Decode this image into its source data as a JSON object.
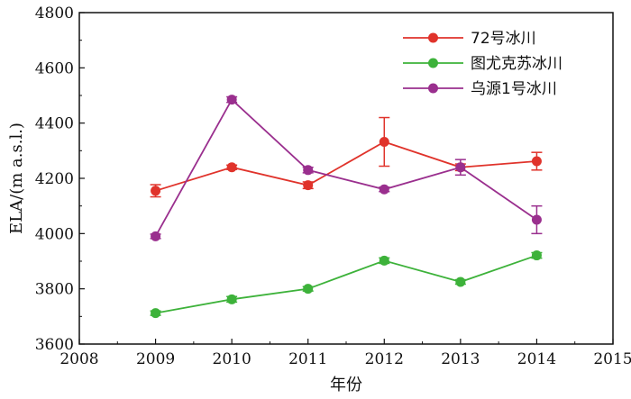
{
  "chart_data": {
    "type": "line",
    "title": "",
    "xlabel": "年份",
    "ylabel": "ELA/(m a.s.l.)",
    "xlim": [
      2008,
      2015
    ],
    "ylim": [
      3600,
      4800
    ],
    "xticks": [
      2008,
      2009,
      2010,
      2011,
      2012,
      2013,
      2014,
      2015
    ],
    "yticks": [
      3600,
      3800,
      4000,
      4200,
      4400,
      4600,
      4800
    ],
    "grid": false,
    "legend_position": "top-right",
    "x": [
      2009,
      2010,
      2011,
      2012,
      2013,
      2014
    ],
    "series": [
      {
        "name": "72号冰川",
        "color": "#e0332b",
        "values": [
          4155,
          4240,
          4175,
          4332,
          4240,
          4262
        ],
        "errors": [
          22,
          8,
          12,
          88,
          12,
          32
        ]
      },
      {
        "name": "图尤克苏冰川",
        "color": "#3db23a",
        "values": [
          3712,
          3762,
          3800,
          3902,
          3825,
          3921
        ],
        "errors": [
          8,
          10,
          8,
          10,
          8,
          10
        ]
      },
      {
        "name": "乌源1号冰川",
        "color": "#9a2f8e",
        "values": [
          3990,
          4485,
          4230,
          4160,
          4240,
          4050
        ],
        "errors": [
          8,
          10,
          10,
          8,
          28,
          50
        ]
      }
    ]
  }
}
